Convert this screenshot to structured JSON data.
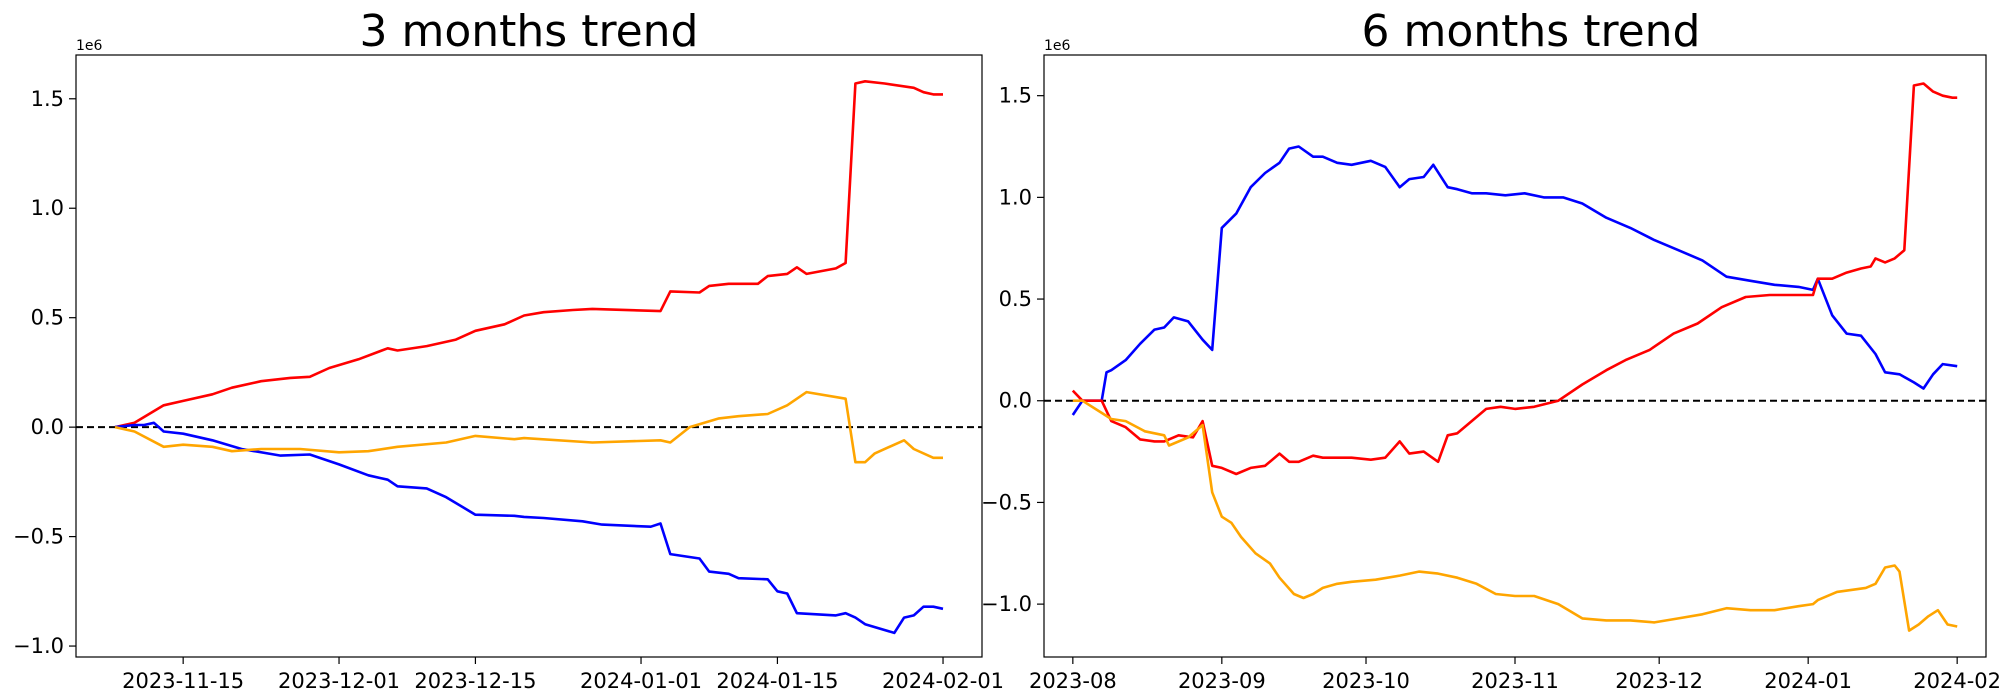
{
  "colors": {
    "red_series": "#ff0000",
    "blue_series": "#0000ff",
    "orange_series": "#ffa500",
    "zero_line": "#000000"
  },
  "chart_data": [
    {
      "type": "line",
      "title": "3 months trend",
      "xlabel": "",
      "ylabel": "",
      "y_offset_label": "1e6",
      "x_axis_type": "date",
      "xlim": [
        "2023-11-04",
        "2024-02-05"
      ],
      "ylim": [
        -1.05,
        1.7
      ],
      "y_scale_factor": 1000000,
      "xticks": [
        "2023-11-15",
        "2023-12-01",
        "2023-12-15",
        "2024-01-01",
        "2024-01-15",
        "2024-02-01"
      ],
      "yticks": [
        -1.0,
        -0.5,
        0.0,
        0.5,
        1.0,
        1.5
      ],
      "reference_line": {
        "y": 0,
        "style": "dashed"
      },
      "series": [
        {
          "color": "#ff0000",
          "x": [
            "2023-11-08",
            "2023-11-10",
            "2023-11-13",
            "2023-11-15",
            "2023-11-18",
            "2023-11-20",
            "2023-11-23",
            "2023-11-26",
            "2023-11-28",
            "2023-11-30",
            "2023-12-03",
            "2023-12-06",
            "2023-12-07",
            "2023-12-10",
            "2023-12-13",
            "2023-12-15",
            "2023-12-18",
            "2023-12-20",
            "2023-12-22",
            "2023-12-25",
            "2023-12-27",
            "2024-01-03",
            "2024-01-04",
            "2024-01-07",
            "2024-01-08",
            "2024-01-10",
            "2024-01-13",
            "2024-01-14",
            "2024-01-16",
            "2024-01-17",
            "2024-01-18",
            "2024-01-21",
            "2024-01-22",
            "2024-01-23",
            "2024-01-24",
            "2024-01-26",
            "2024-01-29",
            "2024-01-30",
            "2024-01-31",
            "2024-02-01"
          ],
          "y": [
            0.0,
            0.02,
            0.1,
            0.12,
            0.15,
            0.18,
            0.21,
            0.225,
            0.23,
            0.27,
            0.31,
            0.36,
            0.35,
            0.37,
            0.4,
            0.44,
            0.47,
            0.51,
            0.525,
            0.535,
            0.54,
            0.53,
            0.62,
            0.615,
            0.645,
            0.655,
            0.655,
            0.69,
            0.7,
            0.73,
            0.7,
            0.725,
            0.75,
            1.57,
            1.58,
            1.57,
            1.55,
            1.53,
            1.52,
            1.52
          ]
        },
        {
          "color": "#0000ff",
          "x": [
            "2023-11-08",
            "2023-11-10",
            "2023-11-11",
            "2023-11-12",
            "2023-11-13",
            "2023-11-15",
            "2023-11-18",
            "2023-11-21",
            "2023-11-25",
            "2023-11-28",
            "2023-12-01",
            "2023-12-04",
            "2023-12-06",
            "2023-12-07",
            "2023-12-10",
            "2023-12-12",
            "2023-12-15",
            "2023-12-19",
            "2023-12-20",
            "2023-12-22",
            "2023-12-26",
            "2023-12-28",
            "2024-01-02",
            "2024-01-03",
            "2024-01-04",
            "2024-01-07",
            "2024-01-08",
            "2024-01-10",
            "2024-01-11",
            "2024-01-14",
            "2024-01-15",
            "2024-01-16",
            "2024-01-17",
            "2024-01-19",
            "2024-01-21",
            "2024-01-22",
            "2024-01-23",
            "2024-01-24",
            "2024-01-27",
            "2024-01-28",
            "2024-01-29",
            "2024-01-30",
            "2024-01-31",
            "2024-02-01"
          ],
          "y": [
            0.0,
            0.01,
            0.01,
            0.02,
            -0.02,
            -0.03,
            -0.06,
            -0.1,
            -0.13,
            -0.125,
            -0.17,
            -0.22,
            -0.24,
            -0.27,
            -0.28,
            -0.32,
            -0.4,
            -0.405,
            -0.41,
            -0.415,
            -0.43,
            -0.445,
            -0.455,
            -0.44,
            -0.58,
            -0.6,
            -0.66,
            -0.67,
            -0.69,
            -0.695,
            -0.75,
            -0.76,
            -0.85,
            -0.855,
            -0.86,
            -0.85,
            -0.87,
            -0.9,
            -0.94,
            -0.87,
            -0.86,
            -0.82,
            -0.82,
            -0.83
          ]
        },
        {
          "color": "#ffa500",
          "x": [
            "2023-11-08",
            "2023-11-10",
            "2023-11-13",
            "2023-11-15",
            "2023-11-18",
            "2023-11-20",
            "2023-11-23",
            "2023-11-27",
            "2023-12-01",
            "2023-12-04",
            "2023-12-07",
            "2023-12-12",
            "2023-12-15",
            "2023-12-19",
            "2023-12-20",
            "2023-12-27",
            "2024-01-03",
            "2024-01-04",
            "2024-01-06",
            "2024-01-09",
            "2024-01-11",
            "2024-01-14",
            "2024-01-16",
            "2024-01-18",
            "2024-01-22",
            "2024-01-23",
            "2024-01-24",
            "2024-01-25",
            "2024-01-28",
            "2024-01-29",
            "2024-01-31",
            "2024-02-01"
          ],
          "y": [
            0.0,
            -0.02,
            -0.09,
            -0.08,
            -0.09,
            -0.11,
            -0.1,
            -0.1,
            -0.115,
            -0.11,
            -0.09,
            -0.07,
            -0.04,
            -0.055,
            -0.05,
            -0.07,
            -0.06,
            -0.07,
            0.0,
            0.04,
            0.05,
            0.06,
            0.1,
            0.16,
            0.13,
            -0.16,
            -0.16,
            -0.12,
            -0.06,
            -0.1,
            -0.14,
            -0.14
          ]
        }
      ]
    },
    {
      "type": "line",
      "title": "6 months trend",
      "xlabel": "",
      "ylabel": "",
      "y_offset_label": "1e6",
      "x_axis_type": "date",
      "xlim": [
        "2023-07-26",
        "2024-02-07"
      ],
      "ylim": [
        -1.26,
        1.7
      ],
      "y_scale_factor": 1000000,
      "xticks": [
        "2023-08",
        "2023-09",
        "2023-10",
        "2023-11",
        "2023-12",
        "2024-01",
        "2024-02"
      ],
      "yticks": [
        -1.0,
        -0.5,
        0.0,
        0.5,
        1.0,
        1.5
      ],
      "reference_line": {
        "y": 0,
        "style": "dashed"
      },
      "series": [
        {
          "color": "#0000ff",
          "x": [
            "2023-08-01",
            "2023-08-03",
            "2023-08-07",
            "2023-08-08",
            "2023-08-09",
            "2023-08-12",
            "2023-08-15",
            "2023-08-18",
            "2023-08-20",
            "2023-08-22",
            "2023-08-25",
            "2023-08-28",
            "2023-08-30",
            "2023-09-01",
            "2023-09-04",
            "2023-09-07",
            "2023-09-10",
            "2023-09-13",
            "2023-09-15",
            "2023-09-17",
            "2023-09-20",
            "2023-09-22",
            "2023-09-25",
            "2023-09-28",
            "2023-10-02",
            "2023-10-05",
            "2023-10-08",
            "2023-10-10",
            "2023-10-13",
            "2023-10-15",
            "2023-10-18",
            "2023-10-20",
            "2023-10-23",
            "2023-10-26",
            "2023-10-30",
            "2023-11-03",
            "2023-11-07",
            "2023-11-11",
            "2023-11-15",
            "2023-11-20",
            "2023-11-25",
            "2023-11-30",
            "2023-12-05",
            "2023-12-10",
            "2023-12-15",
            "2023-12-20",
            "2023-12-25",
            "2023-12-30",
            "2024-01-02",
            "2024-01-03",
            "2024-01-06",
            "2024-01-09",
            "2024-01-12",
            "2024-01-15",
            "2024-01-17",
            "2024-01-20",
            "2024-01-23",
            "2024-01-25",
            "2024-01-27",
            "2024-01-29",
            "2024-02-01"
          ],
          "y": [
            -0.07,
            0.0,
            0.0,
            0.14,
            0.15,
            0.2,
            0.28,
            0.35,
            0.36,
            0.41,
            0.39,
            0.3,
            0.25,
            0.85,
            0.92,
            1.05,
            1.12,
            1.17,
            1.24,
            1.25,
            1.2,
            1.2,
            1.17,
            1.16,
            1.18,
            1.15,
            1.05,
            1.09,
            1.1,
            1.16,
            1.05,
            1.04,
            1.02,
            1.02,
            1.01,
            1.02,
            1.0,
            1.0,
            0.97,
            0.9,
            0.85,
            0.79,
            0.74,
            0.69,
            0.61,
            0.59,
            0.57,
            0.56,
            0.545,
            0.6,
            0.42,
            0.33,
            0.32,
            0.23,
            0.14,
            0.13,
            0.09,
            0.06,
            0.13,
            0.18,
            0.17
          ]
        },
        {
          "color": "#ff0000",
          "x": [
            "2023-08-01",
            "2023-08-03",
            "2023-08-07",
            "2023-08-09",
            "2023-08-12",
            "2023-08-15",
            "2023-08-18",
            "2023-08-20",
            "2023-08-23",
            "2023-08-26",
            "2023-08-28",
            "2023-08-30",
            "2023-09-01",
            "2023-09-04",
            "2023-09-07",
            "2023-09-10",
            "2023-09-13",
            "2023-09-15",
            "2023-09-17",
            "2023-09-20",
            "2023-09-22",
            "2023-09-25",
            "2023-09-28",
            "2023-10-02",
            "2023-10-05",
            "2023-10-08",
            "2023-10-10",
            "2023-10-13",
            "2023-10-16",
            "2023-10-18",
            "2023-10-20",
            "2023-10-23",
            "2023-10-26",
            "2023-10-29",
            "2023-11-01",
            "2023-11-05",
            "2023-11-10",
            "2023-11-15",
            "2023-11-20",
            "2023-11-24",
            "2023-11-29",
            "2023-12-04",
            "2023-12-09",
            "2023-12-14",
            "2023-12-19",
            "2023-12-24",
            "2023-12-29",
            "2024-01-02",
            "2024-01-03",
            "2024-01-06",
            "2024-01-09",
            "2024-01-12",
            "2024-01-14",
            "2024-01-15",
            "2024-01-17",
            "2024-01-19",
            "2024-01-21",
            "2024-01-23",
            "2024-01-25",
            "2024-01-27",
            "2024-01-29",
            "2024-01-31",
            "2024-02-01"
          ],
          "y": [
            0.05,
            0.0,
            0.0,
            -0.1,
            -0.13,
            -0.19,
            -0.2,
            -0.2,
            -0.17,
            -0.18,
            -0.1,
            -0.32,
            -0.33,
            -0.36,
            -0.33,
            -0.32,
            -0.26,
            -0.3,
            -0.3,
            -0.27,
            -0.28,
            -0.28,
            -0.28,
            -0.29,
            -0.28,
            -0.2,
            -0.26,
            -0.25,
            -0.3,
            -0.17,
            -0.16,
            -0.1,
            -0.04,
            -0.03,
            -0.04,
            -0.03,
            0.0,
            0.08,
            0.15,
            0.2,
            0.25,
            0.33,
            0.38,
            0.46,
            0.51,
            0.52,
            0.52,
            0.52,
            0.6,
            0.6,
            0.63,
            0.65,
            0.66,
            0.7,
            0.68,
            0.7,
            0.74,
            1.55,
            1.56,
            1.52,
            1.5,
            1.49,
            1.49
          ]
        },
        {
          "color": "#ffa500",
          "x": [
            "2023-08-01",
            "2023-08-03",
            "2023-08-07",
            "2023-08-09",
            "2023-08-12",
            "2023-08-16",
            "2023-08-20",
            "2023-08-21",
            "2023-08-25",
            "2023-08-28",
            "2023-08-30",
            "2023-09-01",
            "2023-09-03",
            "2023-09-05",
            "2023-09-08",
            "2023-09-11",
            "2023-09-13",
            "2023-09-16",
            "2023-09-18",
            "2023-09-20",
            "2023-09-22",
            "2023-09-25",
            "2023-09-28",
            "2023-10-03",
            "2023-10-08",
            "2023-10-12",
            "2023-10-16",
            "2023-10-20",
            "2023-10-24",
            "2023-10-28",
            "2023-11-01",
            "2023-11-05",
            "2023-11-10",
            "2023-11-15",
            "2023-11-20",
            "2023-11-25",
            "2023-11-30",
            "2023-12-05",
            "2023-12-10",
            "2023-12-15",
            "2023-12-20",
            "2023-12-25",
            "2023-12-30",
            "2024-01-02",
            "2024-01-03",
            "2024-01-07",
            "2024-01-10",
            "2024-01-13",
            "2024-01-15",
            "2024-01-17",
            "2024-01-19",
            "2024-01-20",
            "2024-01-22",
            "2024-01-24",
            "2024-01-26",
            "2024-01-28",
            "2024-01-30",
            "2024-02-01"
          ],
          "y": [
            0.0,
            0.0,
            -0.06,
            -0.09,
            -0.1,
            -0.15,
            -0.17,
            -0.22,
            -0.18,
            -0.12,
            -0.45,
            -0.57,
            -0.6,
            -0.67,
            -0.75,
            -0.8,
            -0.87,
            -0.95,
            -0.97,
            -0.95,
            -0.92,
            -0.9,
            -0.89,
            -0.88,
            -0.86,
            -0.84,
            -0.85,
            -0.87,
            -0.9,
            -0.95,
            -0.96,
            -0.96,
            -1.0,
            -1.07,
            -1.08,
            -1.08,
            -1.09,
            -1.07,
            -1.05,
            -1.02,
            -1.03,
            -1.03,
            -1.01,
            -1.0,
            -0.98,
            -0.94,
            -0.93,
            -0.92,
            -0.9,
            -0.82,
            -0.81,
            -0.84,
            -1.13,
            -1.1,
            -1.06,
            -1.03,
            -1.1,
            -1.11
          ]
        }
      ]
    }
  ]
}
